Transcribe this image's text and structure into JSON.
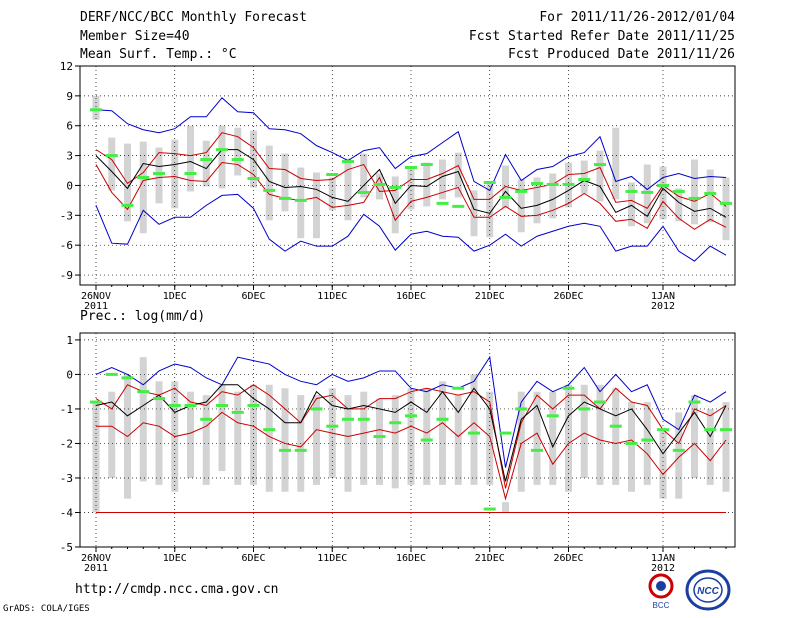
{
  "header": {
    "title": "DERF/NCC/BCC Monthly Forecast",
    "member_size": "Member Size=40",
    "variable": "Mean Surf. Temp.: °C",
    "period": "For 2011/11/26-2012/01/04",
    "fcst_started": "Fcst Started Refer Date 2011/11/25",
    "fcst_produced": "Fcst Produced Date 2011/11/26"
  },
  "footer": {
    "url": "http://cmdp.ncc.cma.gov.cn",
    "grads": "GrADS: COLA/IGES",
    "logo_bcc": "BCC",
    "logo_ncc": "NCC"
  },
  "colors": {
    "max": "#0000cc",
    "min": "#cc0000",
    "mean": "#000000",
    "box": "#d3d3d3",
    "obs": "#44ee44"
  },
  "chart_data": [
    {
      "type": "box",
      "title": "Mean Surf. Temp.: °C",
      "ylim": [
        -10,
        12
      ],
      "yticks": [
        12,
        9,
        6,
        3,
        0,
        -3,
        -6,
        -9
      ],
      "xlim": [
        0,
        40
      ],
      "xticks": [
        {
          "x": 0,
          "label": "26NOV",
          "sub": "2011"
        },
        {
          "x": 5,
          "label": "1DEC",
          "sub": ""
        },
        {
          "x": 10,
          "label": "6DEC",
          "sub": ""
        },
        {
          "x": 15,
          "label": "11DEC",
          "sub": ""
        },
        {
          "x": 20,
          "label": "16DEC",
          "sub": ""
        },
        {
          "x": 25,
          "label": "21DEC",
          "sub": ""
        },
        {
          "x": 30,
          "label": "26DEC",
          "sub": ""
        },
        {
          "x": 36,
          "label": "1JAN",
          "sub": "2012"
        }
      ],
      "series": [
        {
          "name": "max",
          "values": [
            7.6,
            7.5,
            6.2,
            5.6,
            5.3,
            5.7,
            6.9,
            6.9,
            8.8,
            7.4,
            7.3,
            5.7,
            5.6,
            5.2,
            4.0,
            3.3,
            2.5,
            3.5,
            3.8,
            1.7,
            2.9,
            3.2,
            4.3,
            5.4,
            0.4,
            -0.5,
            3.1,
            0.5,
            1.6,
            1.9,
            2.9,
            3.3,
            4.9,
            0.4,
            0.9,
            -0.4,
            0.8,
            1.2,
            0.7,
            0.9,
            0.8
          ]
        },
        {
          "name": "p75",
          "values": [
            3.6,
            2.6,
            0.2,
            1.3,
            3.3,
            3.2,
            3.0,
            3.3,
            5.3,
            4.9,
            3.8,
            1.7,
            1.6,
            0.7,
            0.5,
            0.6,
            1.6,
            2.1,
            -0.6,
            -0.5,
            0.6,
            0.6,
            1.2,
            2.0,
            -1.4,
            -1.4,
            -0.1,
            -0.5,
            -0.2,
            0.1,
            1.1,
            1.2,
            1.8,
            -1.7,
            -1.5,
            -2.3,
            0.0,
            -1.1,
            -1.6,
            -0.8,
            -2.1
          ]
        },
        {
          "name": "mean",
          "values": [
            3.0,
            1.4,
            -0.3,
            2.2,
            1.9,
            2.1,
            2.4,
            1.7,
            3.6,
            3.6,
            2.6,
            0.4,
            -0.2,
            -0.1,
            -0.4,
            -1.2,
            -1.6,
            0.0,
            1.6,
            -1.8,
            0.0,
            -0.1,
            0.9,
            1.4,
            -2.4,
            -2.8,
            -0.6,
            -2.3,
            -2.0,
            -1.4,
            -0.5,
            0.5,
            -0.1,
            -2.7,
            -2.0,
            -3.1,
            -0.3,
            -1.7,
            -2.6,
            -2.3,
            -3.2
          ]
        },
        {
          "name": "p25",
          "values": [
            2.1,
            -0.7,
            -2.4,
            0.5,
            0.8,
            0.9,
            0.5,
            0.4,
            2.3,
            2.1,
            1.1,
            -0.9,
            -1.3,
            -1.5,
            -1.2,
            -2.2,
            -2.0,
            -1.7,
            0.8,
            -3.5,
            -1.6,
            -1.2,
            -0.7,
            -0.2,
            -3.2,
            -3.2,
            -2.1,
            -3.1,
            -3.0,
            -2.5,
            -1.8,
            -0.8,
            -1.8,
            -3.6,
            -3.4,
            -4.3,
            -1.6,
            -3.3,
            -4.4,
            -3.4,
            -4.2
          ]
        },
        {
          "name": "min",
          "values": [
            -2.0,
            -5.8,
            -5.9,
            -2.5,
            -3.9,
            -3.2,
            -3.2,
            -2.0,
            -1.0,
            -0.9,
            -2.3,
            -5.4,
            -6.6,
            -5.6,
            -6.1,
            -6.1,
            -5.1,
            -2.9,
            -4.1,
            -6.5,
            -4.9,
            -4.6,
            -5.1,
            -5.2,
            -6.6,
            -6.0,
            -4.9,
            -6.1,
            -5.1,
            -4.6,
            -4.1,
            -3.8,
            -4.1,
            -6.6,
            -6.1,
            -6.1,
            -4.1,
            -6.6,
            -7.6,
            -6.1,
            -7.0
          ]
        },
        {
          "name": "box_top",
          "values": [
            9.0,
            4.8,
            4.2,
            4.4,
            3.8,
            4.6,
            6.0,
            4.5,
            6.0,
            5.8,
            5.5,
            4.0,
            3.2,
            1.8,
            1.3,
            0.8,
            2.7,
            3.2,
            1.2,
            0.9,
            1.8,
            2.3,
            2.6,
            3.3,
            -0.5,
            0.4,
            2.0,
            0.6,
            0.8,
            1.2,
            2.3,
            2.5,
            3.5,
            5.8,
            0.3,
            2.1,
            1.9,
            -0.3,
            2.6,
            1.6,
            0.8
          ]
        },
        {
          "name": "box_bottom",
          "values": [
            6.6,
            -0.5,
            -3.6,
            -4.8,
            -1.8,
            -2.3,
            -0.6,
            -0.1,
            -0.3,
            1.0,
            -0.2,
            -3.5,
            -2.6,
            -5.3,
            -5.3,
            -2.5,
            -3.5,
            -1.2,
            -1.4,
            -4.8,
            -2.4,
            -2.1,
            -1.4,
            -1.2,
            -5.1,
            -5.2,
            -2.3,
            -4.7,
            -3.8,
            -3.3,
            -2.2,
            -0.8,
            -1.6,
            -1.4,
            -4.1,
            -3.8,
            -3.4,
            -3.6,
            -3.9,
            -3.7,
            -5.5
          ]
        },
        {
          "name": "obs",
          "values": [
            7.6,
            3.0,
            -2.0,
            0.8,
            1.2,
            null,
            1.2,
            2.6,
            3.6,
            2.6,
            0.7,
            -0.5,
            -1.3,
            -1.5,
            null,
            1.1,
            2.4,
            -0.7,
            0.1,
            -0.2,
            1.8,
            2.1,
            -1.8,
            -2.1,
            null,
            0.3,
            -1.2,
            -0.6,
            0.2,
            0.1,
            0.1,
            0.6,
            2.1,
            null,
            -0.6,
            -0.7,
            0.0,
            -0.6,
            -1.3,
            -0.8,
            -1.8
          ]
        }
      ]
    },
    {
      "type": "box",
      "title": "Prec.: log(mm/d)",
      "ylim": [
        -5,
        1.2
      ],
      "yticks": [
        1,
        0,
        -1,
        -2,
        -3,
        -4,
        -5
      ],
      "xlim": [
        0,
        40
      ],
      "xticks": [
        {
          "x": 0,
          "label": "26NOV",
          "sub": "2011"
        },
        {
          "x": 5,
          "label": "1DEC",
          "sub": ""
        },
        {
          "x": 10,
          "label": "6DEC",
          "sub": ""
        },
        {
          "x": 15,
          "label": "11DEC",
          "sub": ""
        },
        {
          "x": 20,
          "label": "16DEC",
          "sub": ""
        },
        {
          "x": 25,
          "label": "21DEC",
          "sub": ""
        },
        {
          "x": 30,
          "label": "26DEC",
          "sub": ""
        },
        {
          "x": 36,
          "label": "1JAN",
          "sub": "2012"
        }
      ],
      "series": [
        {
          "name": "max",
          "values": [
            0.0,
            0.2,
            0.0,
            -0.3,
            0.1,
            0.3,
            0.2,
            -0.1,
            -0.3,
            0.5,
            0.4,
            0.3,
            0.0,
            -0.2,
            -0.3,
            0.0,
            -0.2,
            -0.1,
            0.1,
            0.1,
            -0.4,
            -0.5,
            -0.3,
            -0.4,
            -0.2,
            0.5,
            -2.7,
            -0.8,
            -0.2,
            -0.5,
            -0.3,
            0.2,
            -0.5,
            0.0,
            -0.5,
            -0.3,
            -1.3,
            -1.6,
            -0.6,
            -0.8,
            -0.5
          ]
        },
        {
          "name": "p75",
          "values": [
            -0.7,
            -1.0,
            -0.3,
            -0.5,
            -0.6,
            -0.4,
            -0.8,
            -0.9,
            -0.5,
            -0.6,
            -0.3,
            -0.6,
            -1.0,
            -1.4,
            -0.7,
            -0.6,
            -1.0,
            -1.0,
            -0.7,
            -0.7,
            -0.5,
            -0.4,
            -0.5,
            -0.6,
            -0.5,
            -0.8,
            -3.3,
            -1.4,
            -0.6,
            -1.0,
            -0.6,
            -0.6,
            -1.0,
            -0.4,
            -0.8,
            -0.9,
            -1.6,
            -2.0,
            -1.0,
            -1.2,
            -0.9
          ]
        },
        {
          "name": "mean",
          "values": [
            -0.9,
            -0.8,
            -1.2,
            -0.9,
            -0.6,
            -1.1,
            -0.9,
            -0.8,
            -0.3,
            -0.3,
            -0.7,
            -1.0,
            -1.4,
            -1.4,
            -0.5,
            -0.9,
            -1.0,
            -0.9,
            -1.0,
            -1.1,
            -0.8,
            -1.1,
            -0.5,
            -1.1,
            -0.4,
            -1.0,
            -3.1,
            -1.3,
            -0.9,
            -2.1,
            -1.2,
            -0.8,
            -1.0,
            -1.2,
            -1.0,
            -1.6,
            -2.3,
            -1.7,
            -1.1,
            -1.8,
            -0.9
          ]
        },
        {
          "name": "p25",
          "values": [
            -1.5,
            -1.5,
            -1.8,
            -1.4,
            -1.5,
            -1.8,
            -1.7,
            -1.5,
            -1.1,
            -1.4,
            -1.5,
            -1.8,
            -2.0,
            -2.1,
            -1.6,
            -1.7,
            -1.8,
            -1.7,
            -1.6,
            -1.7,
            -1.5,
            -1.7,
            -1.4,
            -1.8,
            -1.4,
            -1.8,
            -3.6,
            -2.0,
            -1.7,
            -2.6,
            -2.0,
            -1.7,
            -1.9,
            -2.0,
            -1.9,
            -2.3,
            -2.9,
            -2.4,
            -2.0,
            -2.5,
            -1.9
          ]
        },
        {
          "name": "min",
          "values": [
            -4.0,
            -4.0,
            -4.0,
            -4.0,
            -4.0,
            -4.0,
            -4.0,
            -4.0,
            -4.0,
            -4.0,
            -4.0,
            -4.0,
            -4.0,
            -4.0,
            -4.0,
            -4.0,
            -4.0,
            -4.0,
            -4.0,
            -4.0,
            -4.0,
            -4.0,
            -4.0,
            -4.0,
            -4.0,
            -4.0,
            -4.0,
            -4.0,
            -4.0,
            -4.0,
            -4.0,
            -4.0,
            -4.0,
            -4.0,
            -4.0,
            -4.0,
            -4.0,
            -4.0,
            -4.0,
            -4.0,
            -4.0
          ]
        },
        {
          "name": "box_top",
          "values": [
            -0.8,
            -0.5,
            0.0,
            0.5,
            -0.2,
            -0.2,
            -0.5,
            -0.6,
            -0.3,
            -0.5,
            -0.3,
            -0.3,
            -0.4,
            -0.6,
            -0.6,
            -0.4,
            -0.6,
            -0.5,
            -0.7,
            -0.6,
            -0.4,
            -0.4,
            -0.2,
            -0.6,
            0.0,
            -0.5,
            -3.7,
            -0.5,
            -0.5,
            -0.5,
            -0.3,
            -0.3,
            -0.3,
            -0.4,
            -0.8,
            -0.8,
            -1.6,
            -1.1,
            -0.6,
            -1.0,
            -0.8
          ]
        },
        {
          "name": "box_bottom",
          "values": [
            -4.0,
            -3.0,
            -3.6,
            -3.1,
            -3.2,
            -3.4,
            -3.0,
            -3.2,
            -2.8,
            -3.2,
            -3.2,
            -3.4,
            -3.4,
            -3.4,
            -3.2,
            -3.0,
            -3.4,
            -3.2,
            -3.2,
            -3.3,
            -3.2,
            -3.2,
            -3.2,
            -3.2,
            -3.2,
            -3.2,
            -4.0,
            -3.4,
            -3.2,
            -3.2,
            -3.4,
            -3.0,
            -3.2,
            -3.2,
            -3.4,
            -3.2,
            -3.6,
            -3.6,
            -3.0,
            -3.2,
            -3.4
          ]
        },
        {
          "name": "obs",
          "values": [
            -0.8,
            0.0,
            -0.1,
            -0.5,
            -0.7,
            -0.9,
            -0.9,
            -1.3,
            -0.9,
            -1.1,
            -0.9,
            -1.6,
            -2.2,
            -2.2,
            -1.0,
            -1.5,
            -1.3,
            -1.3,
            -1.8,
            -1.4,
            -1.2,
            -1.9,
            -1.3,
            -0.4,
            -1.7,
            -3.9,
            -1.7,
            -1.0,
            -2.2,
            -1.2,
            -0.4,
            -1.0,
            -0.8,
            -1.5,
            -2.0,
            -1.9,
            -1.6,
            -2.2,
            -0.8,
            -1.6,
            -1.6
          ]
        }
      ]
    }
  ],
  "panel2_label": "Prec.: log(mm/d)"
}
